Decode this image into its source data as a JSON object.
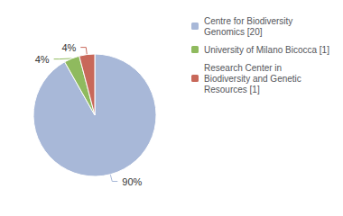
{
  "chart_data": {
    "type": "pie",
    "categories": [
      "Centre for Biodiversity\nGenomics [20]",
      "University of Milano Bicocca [1]",
      "Research Center in\nBiodiversity and Genetic\nResources [1]"
    ],
    "values": [
      90,
      4,
      4
    ],
    "value_labels": [
      "90%",
      "4%",
      "4%"
    ],
    "colors": [
      "#a8b8d8",
      "#8fba5e",
      "#c8685a"
    ],
    "legend": "upper right"
  }
}
